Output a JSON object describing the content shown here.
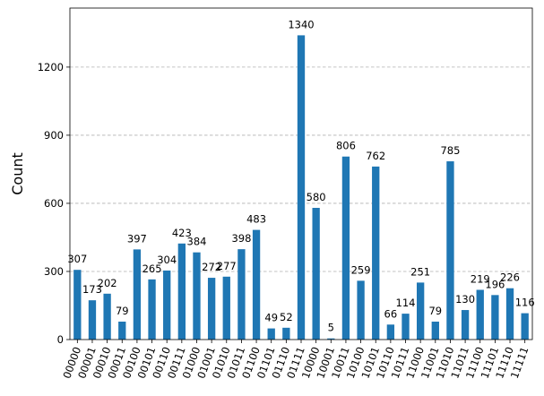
{
  "chart_data": {
    "type": "bar",
    "ylabel": "Count",
    "xlabel": "",
    "title": "",
    "ylim": [
      0,
      1460
    ],
    "yticks": [
      0,
      300,
      600,
      900,
      1200
    ],
    "grid": "horizontal-dashed",
    "bar_color": "#1f77b4",
    "categories": [
      "00000",
      "00001",
      "00010",
      "00011",
      "00100",
      "00101",
      "00110",
      "00111",
      "01000",
      "01001",
      "01010",
      "01011",
      "01100",
      "01101",
      "01110",
      "01111",
      "10000",
      "10001",
      "10011",
      "10100",
      "10101",
      "10110",
      "10111",
      "11000",
      "11001",
      "11010",
      "11011",
      "11100",
      "11101",
      "11110",
      "11111"
    ],
    "values": [
      307,
      173,
      202,
      79,
      397,
      265,
      304,
      423,
      384,
      272,
      277,
      398,
      483,
      49,
      52,
      1340,
      580,
      5,
      806,
      259,
      762,
      66,
      114,
      251,
      79,
      785,
      130,
      219,
      196,
      226,
      116
    ]
  }
}
